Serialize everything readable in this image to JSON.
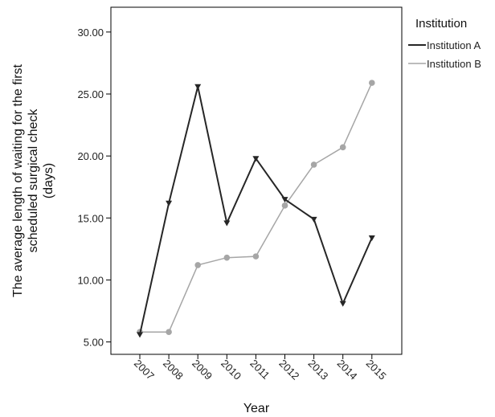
{
  "chart_data": {
    "type": "line",
    "title": "",
    "xlabel": "Year",
    "ylabel": "The average length of waiting for the first scheduled surgical check (days)",
    "ylabel_lines": [
      "The average length of waiting for the first",
      "scheduled surgical check",
      "(days)"
    ],
    "categories": [
      "2007",
      "2008",
      "2009",
      "2010",
      "2011",
      "2012",
      "2013",
      "2014",
      "2015"
    ],
    "ylim": [
      4,
      32
    ],
    "yticks": [
      5,
      10,
      15,
      20,
      25,
      30
    ],
    "ytick_labels": [
      "5.00",
      "10.00",
      "15.00",
      "20.00",
      "25.00",
      "30.00"
    ],
    "grid": false,
    "legend": {
      "title": "Institution",
      "position": "top-right outside"
    },
    "series": [
      {
        "name": "Institution A",
        "color": "#262626",
        "marker": "triangle-down",
        "values": [
          5.6,
          16.2,
          25.6,
          14.6,
          19.8,
          16.5,
          14.9,
          8.1,
          13.4
        ]
      },
      {
        "name": "Institution B",
        "color": "#a6a6a6",
        "marker": "circle",
        "values": [
          5.8,
          5.8,
          11.2,
          11.8,
          11.9,
          16.0,
          19.3,
          20.7,
          25.9
        ]
      }
    ]
  }
}
